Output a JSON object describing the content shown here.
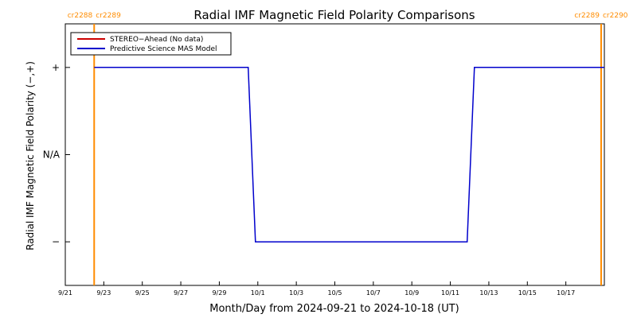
{
  "chart_data": {
    "type": "line",
    "title": "Radial IMF Magnetic Field Polarity Comparisons",
    "xlabel": "Month/Day from 2024-09-21 to 2024-10-18 (UT)",
    "ylabel": "Radial IMF Magnetic Field Polarity (−,+)",
    "xlim": [
      "2024-09-21",
      "2024-10-19"
    ],
    "ylim": [
      -1.5,
      1.5
    ],
    "x_ticks": [
      {
        "date": "2024-09-21",
        "label": "9/21"
      },
      {
        "date": "2024-09-23",
        "label": "9/23"
      },
      {
        "date": "2024-09-25",
        "label": "9/25"
      },
      {
        "date": "2024-09-27",
        "label": "9/27"
      },
      {
        "date": "2024-09-29",
        "label": "9/29"
      },
      {
        "date": "2024-10-01",
        "label": "10/1"
      },
      {
        "date": "2024-10-03",
        "label": "10/3"
      },
      {
        "date": "2024-10-05",
        "label": "10/5"
      },
      {
        "date": "2024-10-07",
        "label": "10/7"
      },
      {
        "date": "2024-10-09",
        "label": "10/9"
      },
      {
        "date": "2024-10-11",
        "label": "10/11"
      },
      {
        "date": "2024-10-13",
        "label": "10/13"
      },
      {
        "date": "2024-10-15",
        "label": "10/15"
      },
      {
        "date": "2024-10-17",
        "label": "10/17"
      }
    ],
    "y_ticks": [
      {
        "value": 1,
        "label": "+"
      },
      {
        "value": 0,
        "label": "N/A"
      },
      {
        "value": -1,
        "label": "−"
      }
    ],
    "legend_position": "top-left",
    "series": [
      {
        "name": "STEREO−Ahead (No data)",
        "color": "#cc0000",
        "x": [],
        "y": []
      },
      {
        "name": "Predictive Science MAS Model",
        "color": "#0000cc",
        "x": [
          "2024-09-22 12:00",
          "2024-09-30 12:00",
          "2024-09-30 21:00",
          "2024-10-11 21:00",
          "2024-10-12 06:00",
          "2024-10-19"
        ],
        "y": [
          1,
          1,
          -1,
          -1,
          1,
          1
        ]
      }
    ],
    "carrington_markers": [
      {
        "label": "cr2288",
        "date": "2024-09-22 12:00",
        "side": "left"
      },
      {
        "label": "cr2289",
        "date": "2024-09-22 12:00",
        "side": "right"
      },
      {
        "label": "cr2289",
        "date": "2024-10-18 20:00",
        "side": "left"
      },
      {
        "label": "cr2290",
        "date": "2024-10-18 20:00",
        "side": "right"
      }
    ],
    "marker_color": "#ff8c00",
    "grid": false
  }
}
